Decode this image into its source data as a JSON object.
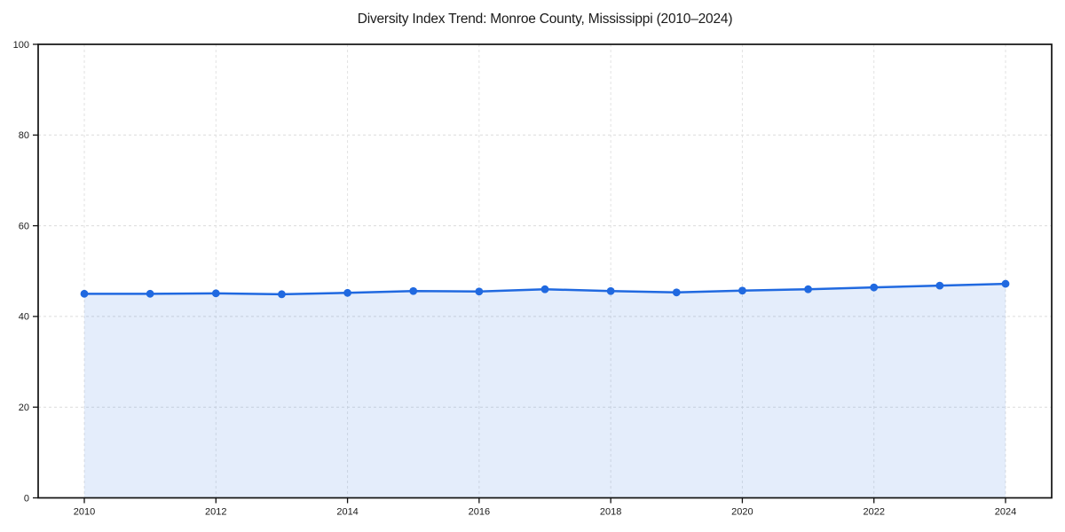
{
  "chart_data": {
    "type": "area",
    "title": "Diversity Index Trend: Monroe County, Mississippi (2010–2024)",
    "x": [
      2010,
      2011,
      2012,
      2013,
      2014,
      2015,
      2016,
      2017,
      2018,
      2019,
      2020,
      2021,
      2022,
      2023,
      2024
    ],
    "series": [
      {
        "name": "Diversity Index",
        "values": [
          45.0,
          45.0,
          45.1,
          44.9,
          45.2,
          45.6,
          45.5,
          46.0,
          45.6,
          45.3,
          45.7,
          46.0,
          46.4,
          46.8,
          47.2
        ]
      }
    ],
    "xlabel": "",
    "ylabel": "",
    "ylim": [
      0,
      100
    ],
    "y_ticks": [
      0,
      20,
      40,
      60,
      80,
      100
    ],
    "x_tick_years": [
      2010,
      2012,
      2014,
      2016,
      2018,
      2020,
      2022,
      2024
    ],
    "grid": "dashed, on x ticks and y ticks",
    "legend": "none",
    "colors": {
      "line": "#2069e0",
      "marker": "#2069e0",
      "fill": "#2069e0",
      "fill_opacity": 0.12,
      "gridline": "#dcdcdc",
      "axis_frame": "#111111",
      "text": "#1a1a1a"
    }
  }
}
